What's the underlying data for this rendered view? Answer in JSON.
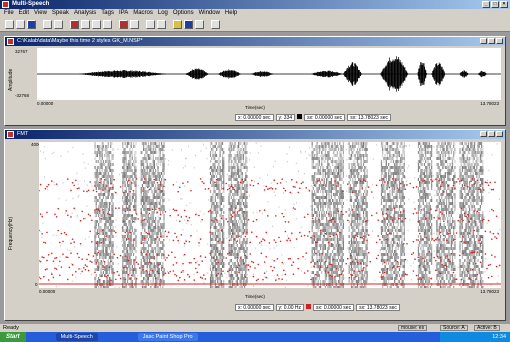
{
  "app": {
    "title": "Multi-Speech"
  },
  "menu": [
    "File",
    "Edit",
    "View",
    "Speak",
    "Analysis",
    "Tags",
    "IPA",
    "Macros",
    "Log",
    "Options",
    "Window",
    "Help"
  ],
  "wave": {
    "title": "C:\\Kalab\\data\\Maybe this time 2 styles GK_M.NSP*",
    "ylabel": "Amplitude",
    "ytop": "32767",
    "ybottom": "-32768",
    "xleft": "0.00000",
    "xright": "13.78023",
    "xlabel": "Time(sec)",
    "status": [
      "x: 0.00000 sec",
      "y: 334",
      "sx: 0.00000 sec",
      "sx: 13.78023 sec"
    ],
    "segments": [
      [
        0.09,
        0.28,
        0.18
      ],
      [
        0.32,
        0.37,
        0.26
      ],
      [
        0.39,
        0.44,
        0.22
      ],
      [
        0.46,
        0.51,
        0.14
      ],
      [
        0.59,
        0.66,
        0.16
      ],
      [
        0.66,
        0.7,
        0.55
      ],
      [
        0.74,
        0.8,
        0.9
      ],
      [
        0.82,
        0.84,
        0.7
      ],
      [
        0.85,
        0.88,
        0.55
      ],
      [
        0.91,
        0.93,
        0.18
      ],
      [
        0.95,
        0.97,
        0.16
      ]
    ]
  },
  "fmt": {
    "title": "FMT",
    "ylabel": "Frequency(Hz)",
    "ytop": "4000",
    "ybottom": "0",
    "xleft": "0.00000",
    "xright": "13.78023",
    "xlabel": "Time(sec)",
    "status": [
      "x: 0.00000 sec",
      "y: 0.00 Hz",
      "sx: 0.00000 sec",
      "sx: 13.78023 sec"
    ],
    "bands": [
      [
        0.12,
        0.16
      ],
      [
        0.18,
        0.21
      ],
      [
        0.22,
        0.27
      ],
      [
        0.37,
        0.4
      ],
      [
        0.41,
        0.45
      ],
      [
        0.59,
        0.66
      ],
      [
        0.67,
        0.71
      ],
      [
        0.74,
        0.79
      ],
      [
        0.82,
        0.85
      ],
      [
        0.86,
        0.9
      ],
      [
        0.91,
        0.96
      ]
    ]
  },
  "statusbar": {
    "ready": "Ready",
    "mouse": "mouse: es",
    "source": "Source: A",
    "active": "Active: B"
  },
  "taskbar": {
    "start": "Start",
    "tasks": [
      "Multi-Speech",
      "Jasc Paint Shop Pro"
    ],
    "clock": "12:34"
  }
}
